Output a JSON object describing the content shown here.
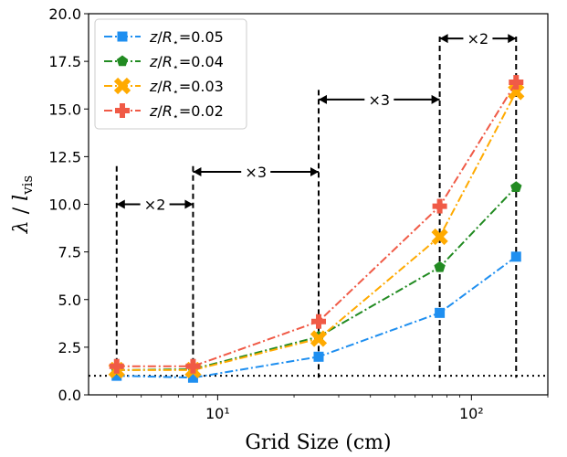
{
  "chart_data": {
    "type": "line",
    "xscale": "log",
    "xlim": [
      3.1,
      200
    ],
    "ylim": [
      0,
      20
    ],
    "grid": false,
    "legend_placement": "top-left",
    "xlabel": "Grid Size (cm)",
    "ylabel": "λ / l_vis",
    "yticks": [
      "0.0",
      "2.5",
      "5.0",
      "7.5",
      "10.0",
      "12.5",
      "15.0",
      "17.5",
      "20.0"
    ],
    "xticks_major": [
      {
        "value": 10,
        "label": "10¹"
      },
      {
        "value": 100,
        "label": "10²"
      }
    ],
    "x": [
      4,
      8,
      25,
      75,
      150
    ],
    "series": [
      {
        "name": "z/R⋆=0.05",
        "color": "#1f8ff0",
        "marker": "square",
        "values": [
          1.0,
          0.9,
          2.0,
          4.3,
          7.25
        ]
      },
      {
        "name": "z/R⋆=0.04",
        "color": "#228b22",
        "marker": "pentagon",
        "values": [
          1.3,
          1.35,
          3.05,
          6.7,
          10.9
        ]
      },
      {
        "name": "z/R⋆=0.03",
        "color": "#ffaa00",
        "marker": "x-filled",
        "values": [
          1.3,
          1.3,
          2.95,
          8.3,
          15.9
        ]
      },
      {
        "name": "z/R⋆=0.02",
        "color": "#f05a46",
        "marker": "plus-filled",
        "values": [
          1.5,
          1.5,
          3.85,
          9.9,
          16.4
        ]
      }
    ],
    "reference_line": {
      "y": 1.0,
      "style": "dotted",
      "color": "#000000"
    },
    "annotations": [
      {
        "label": "×2",
        "x_from": 4,
        "x_to": 8,
        "y": 10.0,
        "vline_top": 12.0
      },
      {
        "label": "×3",
        "x_from": 8,
        "x_to": 25,
        "y": 11.7,
        "vline_top": 12.0
      },
      {
        "label": "×3",
        "x_from": 25,
        "x_to": 75,
        "y": 15.5,
        "vline_top": 16.0
      },
      {
        "label": "×2",
        "x_from": 75,
        "x_to": 150,
        "y": 18.7,
        "vline_top": 18.8
      }
    ]
  }
}
